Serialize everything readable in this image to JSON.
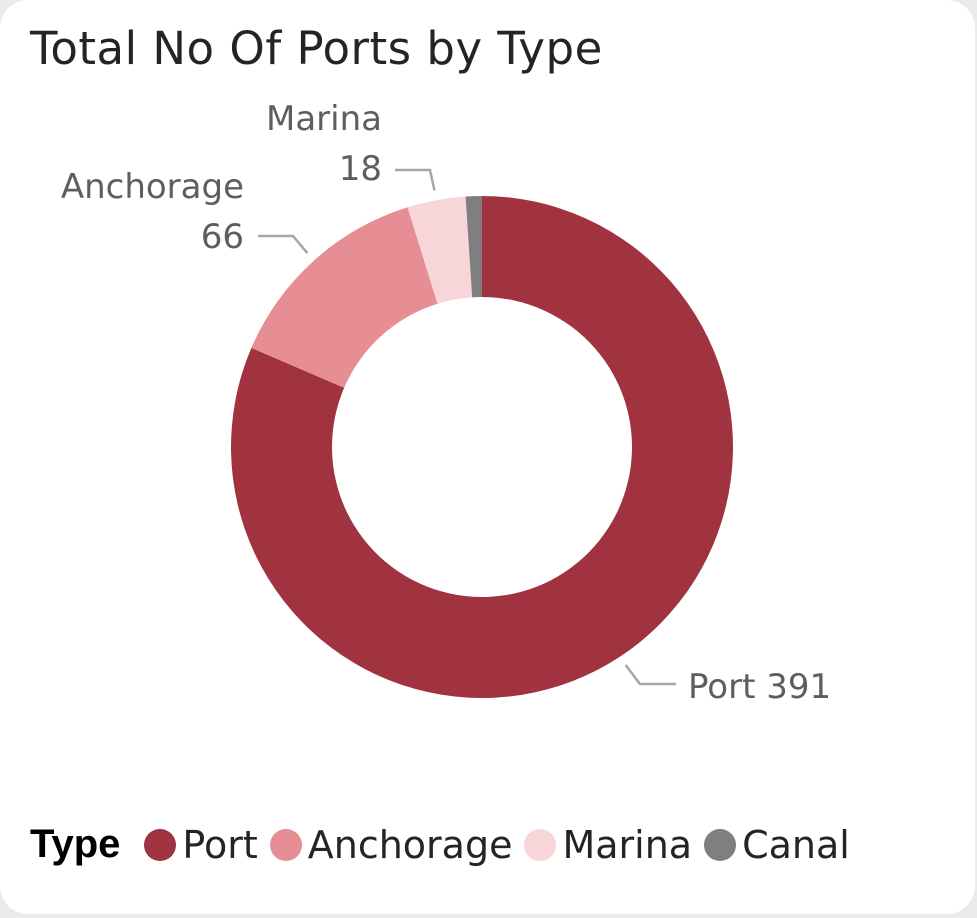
{
  "chart_data": {
    "type": "pie",
    "subtype": "donut",
    "title": "Total No Of Ports by Type",
    "legend_title": "Type",
    "legend_position": "bottom-left",
    "start_angle": "top (12 o'clock)",
    "direction": "clockwise",
    "categories": [
      "Port",
      "Anchorage",
      "Marina",
      "Canal"
    ],
    "values": [
      391,
      66,
      18,
      5
    ],
    "colors": [
      "#a0333f",
      "#e68e93",
      "#f8d5d8",
      "#7f7f7f"
    ],
    "data_labels": [
      {
        "category": "Port",
        "name": "Port",
        "value": "391"
      },
      {
        "category": "Anchorage",
        "name": "Anchorage",
        "value": "66"
      },
      {
        "category": "Marina",
        "name": "Marina",
        "value": "18"
      }
    ]
  }
}
